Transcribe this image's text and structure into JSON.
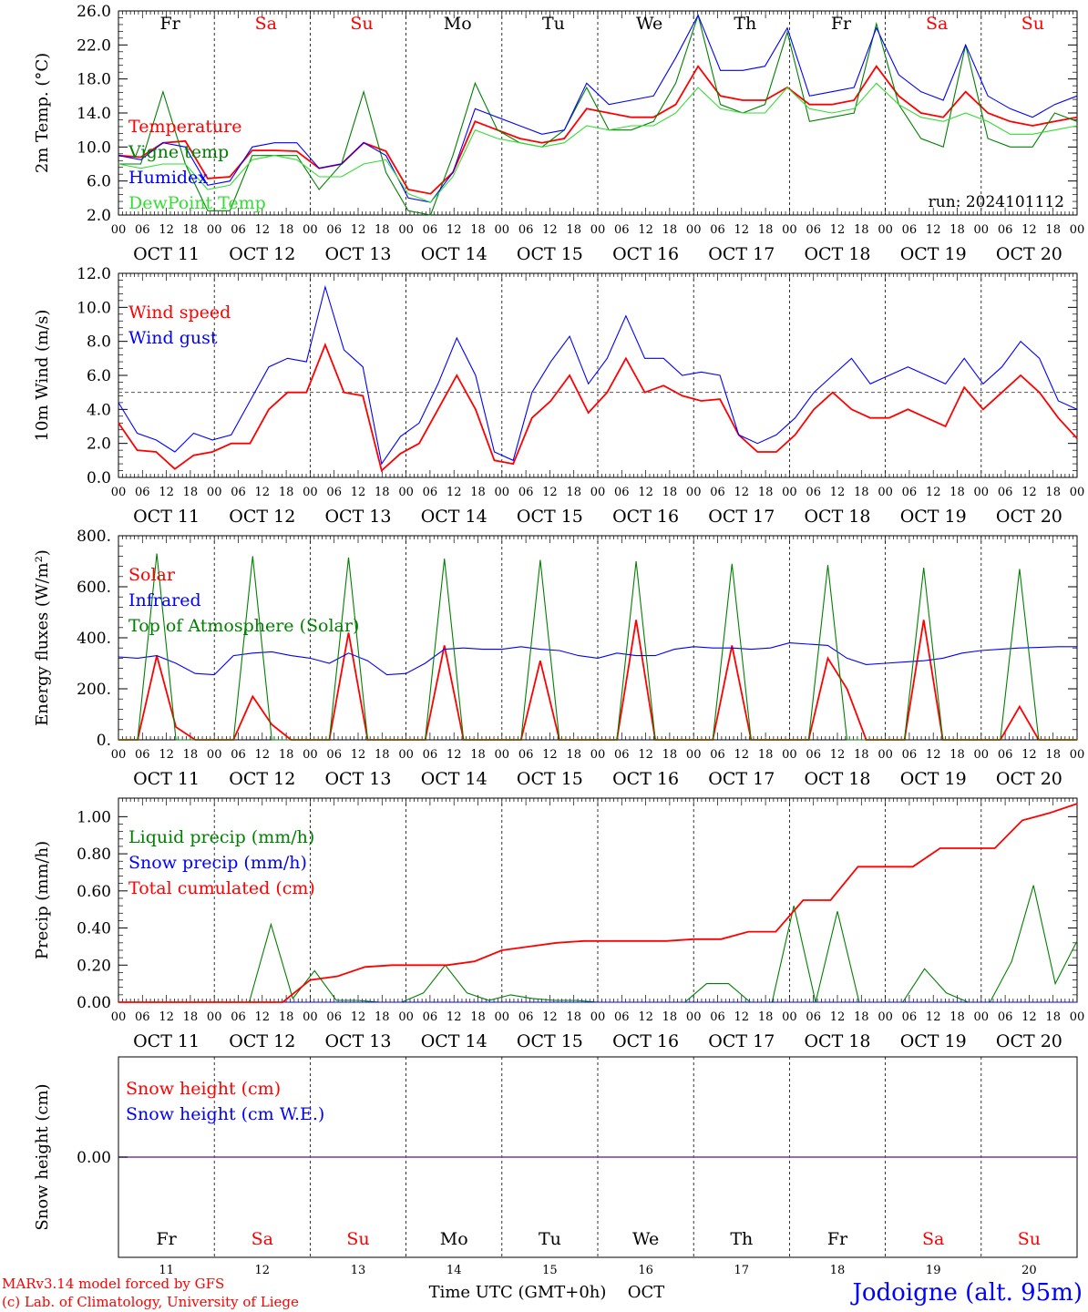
{
  "x_tick_hours": [
    "00",
    "06",
    "12",
    "18"
  ],
  "date_labels": [
    "OCT 11",
    "OCT 12",
    "OCT 13",
    "OCT 14",
    "OCT 15",
    "OCT 16",
    "OCT 17",
    "OCT 18",
    "OCT 19",
    "OCT 20"
  ],
  "weekdays": [
    "Fr",
    "Sa",
    "Su",
    "Mo",
    "Tu",
    "We",
    "Th",
    "Fr",
    "Sa",
    "Su"
  ],
  "weekend_flags": [
    false,
    true,
    true,
    false,
    false,
    false,
    false,
    false,
    true,
    true
  ],
  "day_numbers": [
    "11",
    "12",
    "13",
    "14",
    "15",
    "16",
    "17",
    "18",
    "19",
    "20"
  ],
  "colors": {
    "red": "#ff0000",
    "green": "#008000",
    "blue": "#0000ff",
    "lightgreen": "#33dd33",
    "purple": "#7a3aa0",
    "axis": "#000000"
  },
  "footer": {
    "model": "MARv3.14 model forced by GFS",
    "credit": "(c) Lab. of Climatology, University of Liege",
    "xlabel": "Time UTC (GMT+0h)",
    "month": "OCT",
    "location": "Jodoigne (alt. 95m)"
  },
  "chart_data": [
    {
      "type": "line",
      "ylabel": "2m Temp. (°C)",
      "ylim": [
        2.0,
        26.0
      ],
      "yticks": [
        "2.0",
        "6.0",
        "10.0",
        "14.0",
        "18.0",
        "22.0",
        "26.0"
      ],
      "annotation": "run: 2024101112",
      "x_hours_step": 6,
      "series": [
        {
          "name": "Temperature",
          "color": "red",
          "values": [
            9,
            8.8,
            10.5,
            10.7,
            6.3,
            6.5,
            9.6,
            9.6,
            9.5,
            7.5,
            8,
            10.5,
            9.5,
            5,
            4.5,
            7,
            13,
            12,
            11,
            10.5,
            11,
            14.5,
            14,
            13.5,
            13.5,
            15,
            19.5,
            16,
            15.5,
            15.5,
            17,
            15,
            15,
            15.5,
            19.5,
            16,
            14,
            13.5,
            16.5,
            14,
            13,
            12.5,
            13,
            13.5
          ]
        },
        {
          "name": "Vigne temp",
          "color": "green",
          "values": [
            8,
            8,
            16.5,
            8,
            2.5,
            2.5,
            9,
            9,
            9,
            5,
            8,
            16.5,
            7,
            2.5,
            1,
            9,
            17.5,
            12,
            10.5,
            10,
            12,
            17,
            12,
            12,
            13,
            17.5,
            25.5,
            15,
            14,
            15,
            23.5,
            13,
            13.5,
            14,
            24.5,
            15,
            11,
            10,
            22,
            11,
            10,
            10,
            14,
            13
          ]
        },
        {
          "name": "Humidex",
          "color": "blue",
          "values": [
            9,
            8.5,
            10.5,
            10,
            5.5,
            6,
            10,
            10.5,
            10.5,
            7.5,
            8,
            10.5,
            9,
            4,
            3.5,
            7,
            14.5,
            13.5,
            12.5,
            11.5,
            12,
            17.5,
            15,
            15.5,
            16,
            20.5,
            25.5,
            19,
            19,
            19.5,
            24,
            16,
            16.5,
            17,
            24,
            18.5,
            16.5,
            15.5,
            22,
            16,
            14.5,
            13.5,
            15,
            16
          ]
        },
        {
          "name": "DewPoint Temp",
          "color": "lightgreen",
          "values": [
            8,
            7.5,
            8,
            8,
            5,
            5.5,
            8.5,
            9,
            8.5,
            6.5,
            6.5,
            8,
            8.5,
            4.5,
            3.5,
            6.5,
            12,
            11,
            10.5,
            10,
            10.5,
            12.5,
            12,
            12.5,
            12.5,
            14,
            17,
            14.5,
            14,
            14,
            17,
            14.5,
            14,
            14.5,
            17.5,
            15,
            13.5,
            13,
            14,
            13,
            11.5,
            11.5,
            12,
            12.5
          ]
        }
      ]
    },
    {
      "type": "line",
      "ylabel": "10m Wind (m/s)",
      "ylim": [
        0.0,
        12.0
      ],
      "yticks": [
        "0.0",
        "2.0",
        "4.0",
        "6.0",
        "8.0",
        "10.0",
        "12.0"
      ],
      "reference_line": 5.0,
      "x_hours_step": 6,
      "series": [
        {
          "name": "Wind speed",
          "color": "red",
          "values": [
            3.2,
            1.6,
            1.5,
            0.5,
            1.3,
            1.5,
            2,
            2,
            4,
            5,
            5,
            7.8,
            5,
            4.8,
            0.4,
            1.4,
            2,
            4,
            6,
            4,
            1,
            0.8,
            3.5,
            4.5,
            6,
            3.8,
            5,
            7,
            5,
            5.4,
            4.8,
            4.5,
            4.6,
            2.5,
            1.5,
            1.5,
            2.5,
            4,
            5,
            4,
            3.5,
            3.5,
            4,
            3.5,
            3,
            5.3,
            4,
            5,
            6,
            5,
            3.5,
            2.3
          ]
        },
        {
          "name": "Wind gust",
          "color": "blue",
          "values": [
            4.4,
            2.6,
            2.2,
            1.5,
            2.6,
            2.2,
            2.5,
            4.5,
            6.5,
            7,
            6.8,
            11.2,
            7.5,
            6.5,
            0.8,
            2.4,
            3.2,
            5.5,
            8.2,
            6,
            1.5,
            1.0,
            5,
            6.8,
            8.3,
            5.5,
            7,
            9.5,
            7,
            7,
            6,
            6.2,
            6,
            2.5,
            2,
            2.5,
            3.5,
            5,
            6,
            7,
            5.5,
            6,
            6.5,
            6,
            5.5,
            7,
            5.5,
            6.5,
            8,
            7,
            4.5,
            4
          ]
        }
      ]
    },
    {
      "type": "line",
      "ylabel": "Energy fluxes (W/m²)",
      "ylim": [
        0,
        800
      ],
      "yticks": [
        "0.",
        "200.",
        "400.",
        "600.",
        "800."
      ],
      "x_hours_step": 6,
      "series": [
        {
          "name": "Solar",
          "color": "red",
          "values": [
            0,
            0,
            330,
            50,
            0,
            0,
            0,
            170,
            60,
            0,
            0,
            0,
            420,
            0,
            0,
            0,
            0,
            370,
            0,
            0,
            0,
            0,
            310,
            0,
            0,
            0,
            0,
            470,
            0,
            0,
            0,
            0,
            370,
            0,
            0,
            0,
            0,
            320,
            200,
            0,
            0,
            0,
            470,
            0,
            0,
            0,
            0,
            130,
            0,
            0,
            0
          ]
        },
        {
          "name": "Infrared",
          "color": "blue",
          "values": [
            325,
            320,
            330,
            300,
            260,
            255,
            330,
            340,
            345,
            330,
            320,
            300,
            340,
            310,
            255,
            260,
            300,
            355,
            360,
            355,
            355,
            365,
            355,
            350,
            330,
            320,
            340,
            330,
            330,
            355,
            365,
            360,
            360,
            355,
            360,
            380,
            375,
            370,
            320,
            295,
            300,
            305,
            310,
            320,
            340,
            350,
            355,
            360,
            362,
            365,
            365
          ]
        },
        {
          "name": "Top of Atmosphere (Solar)",
          "color": "green",
          "values": [
            0,
            0,
            730,
            0,
            0,
            0,
            0,
            720,
            0,
            0,
            0,
            0,
            715,
            0,
            0,
            0,
            0,
            710,
            0,
            0,
            0,
            0,
            705,
            0,
            0,
            0,
            0,
            700,
            0,
            0,
            0,
            0,
            690,
            0,
            0,
            0,
            0,
            685,
            0,
            0,
            0,
            0,
            675,
            0,
            0,
            0,
            0,
            670,
            0,
            0,
            0
          ]
        }
      ]
    },
    {
      "type": "line",
      "ylabel": "Precip (mm/h)",
      "ylim": [
        0.0,
        1.1
      ],
      "yticks": [
        "0.00",
        "0.20",
        "0.40",
        "0.60",
        "0.80",
        "1.00"
      ],
      "x_hours_step": 6,
      "series": [
        {
          "name": "Liquid precip (mm/h)",
          "color": "green",
          "values": [
            0,
            0,
            0,
            0,
            0,
            0,
            0,
            0.42,
            0.02,
            0.17,
            0.01,
            0.01,
            0,
            0,
            0.05,
            0.2,
            0.05,
            0.01,
            0.04,
            0.02,
            0.01,
            0.01,
            0,
            0,
            0,
            0,
            0,
            0.1,
            0.1,
            0,
            0,
            0.52,
            0,
            0.49,
            0,
            0,
            0,
            0.18,
            0.05,
            0,
            0,
            0.22,
            0.63,
            0.1,
            0.33
          ]
        },
        {
          "name": "Snow precip (mm/h)",
          "color": "blue",
          "values": [
            0,
            0,
            0,
            0,
            0,
            0,
            0,
            0,
            0,
            0,
            0,
            0,
            0,
            0,
            0,
            0,
            0,
            0,
            0,
            0,
            0,
            0,
            0,
            0,
            0,
            0,
            0,
            0,
            0,
            0,
            0,
            0,
            0,
            0,
            0,
            0,
            0,
            0,
            0,
            0,
            0,
            0,
            0,
            0,
            0
          ]
        },
        {
          "name": "Total cumulated (cm)",
          "color": "red",
          "values": [
            0,
            0,
            0,
            0,
            0,
            0,
            0,
            0.12,
            0.14,
            0.19,
            0.2,
            0.2,
            0.2,
            0.22,
            0.28,
            0.3,
            0.32,
            0.33,
            0.33,
            0.33,
            0.33,
            0.34,
            0.34,
            0.38,
            0.38,
            0.55,
            0.55,
            0.73,
            0.73,
            0.73,
            0.83,
            0.83,
            0.83,
            0.98,
            1.02,
            1.07
          ]
        }
      ]
    },
    {
      "type": "line",
      "ylabel": "Snow height (cm)",
      "yticks": [
        "0.00"
      ],
      "series": [
        {
          "name": "Snow height (cm)",
          "color": "red",
          "values": [
            0,
            0,
            0,
            0,
            0,
            0,
            0,
            0,
            0,
            0,
            0
          ]
        },
        {
          "name": "Snow height (cm W.E.)",
          "color": "blue",
          "values": [
            0,
            0,
            0,
            0,
            0,
            0,
            0,
            0,
            0,
            0,
            0
          ]
        }
      ]
    }
  ]
}
